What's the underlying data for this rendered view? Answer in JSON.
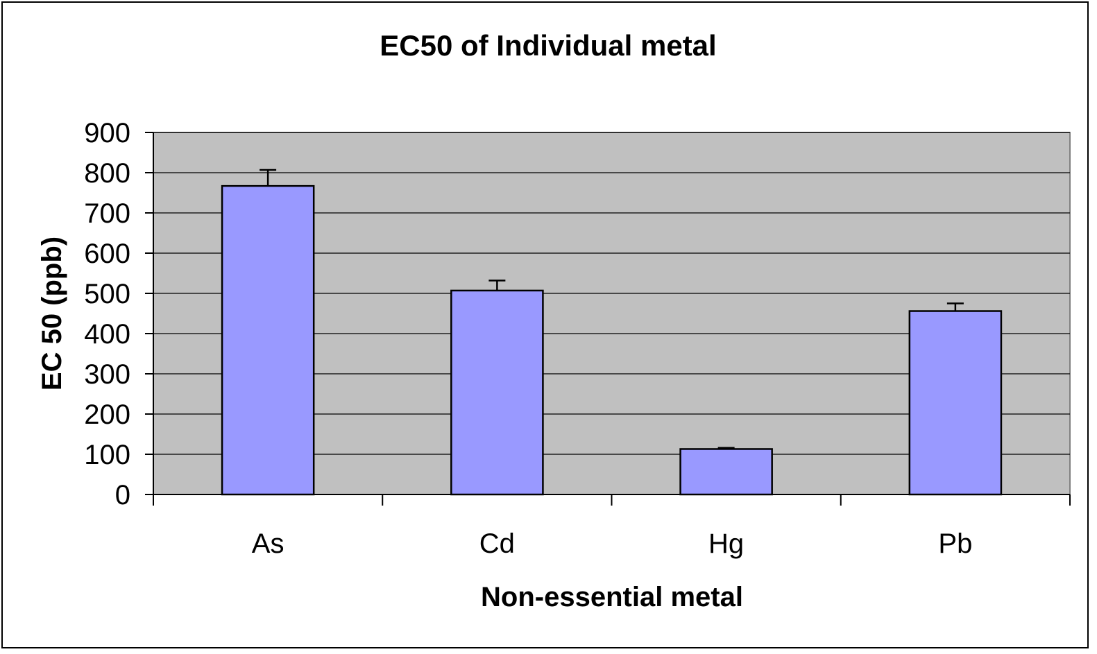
{
  "chart_data": {
    "type": "bar",
    "title": "EC50 of Individual metal",
    "xlabel": "Non-essential metal",
    "ylabel": "EC 50 (ppb)",
    "categories": [
      "As",
      "Cd",
      "Hg",
      "Pb"
    ],
    "values": [
      767,
      507,
      113,
      456
    ],
    "error": [
      40,
      25,
      3,
      19
    ],
    "ylim": [
      0,
      900
    ],
    "yticks": [
      "0",
      "100",
      "200",
      "300",
      "400",
      "500",
      "600",
      "700",
      "800",
      "900"
    ],
    "grid": true,
    "colors": {
      "bar": "#9999ff",
      "plot_background": "#c0c0c0",
      "outline": "#000000"
    }
  }
}
